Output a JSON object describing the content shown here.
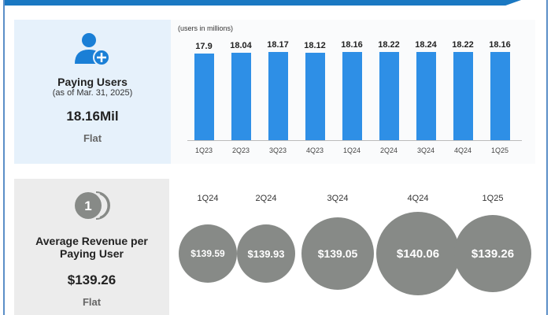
{
  "paying_users": {
    "title": "Paying Users",
    "subtitle": "(as of Mar. 31, 2025)",
    "value": "18.16Mil",
    "change": "Flat",
    "icon": "user-add-icon"
  },
  "chart_data": {
    "type": "bar",
    "title": "",
    "ylabel": "(users in millions)",
    "categories": [
      "1Q23",
      "2Q23",
      "3Q23",
      "4Q23",
      "1Q24",
      "2Q24",
      "3Q24",
      "4Q24",
      "1Q25"
    ],
    "values": [
      17.9,
      18.04,
      18.17,
      18.12,
      18.16,
      18.22,
      18.24,
      18.22,
      18.16
    ],
    "labels": [
      "17.9",
      "18.04",
      "18.17",
      "18.12",
      "18.16",
      "18.22",
      "18.24",
      "18.22",
      "18.16"
    ],
    "color": "#2e8fe6",
    "grid": false
  },
  "arppu": {
    "title_line1": "Average Revenue per",
    "title_line2": "Paying User",
    "value": "$139.26",
    "change": "Flat",
    "icon": "coins-icon",
    "icon_text": "1",
    "quarters": [
      {
        "q": "1Q24",
        "v": "$139.59"
      },
      {
        "q": "2Q24",
        "v": "$139.93"
      },
      {
        "q": "3Q24",
        "v": "$139.05"
      },
      {
        "q": "4Q24",
        "v": "$140.06"
      },
      {
        "q": "1Q25",
        "v": "$139.26"
      }
    ],
    "bubble_color": "#878a87"
  }
}
